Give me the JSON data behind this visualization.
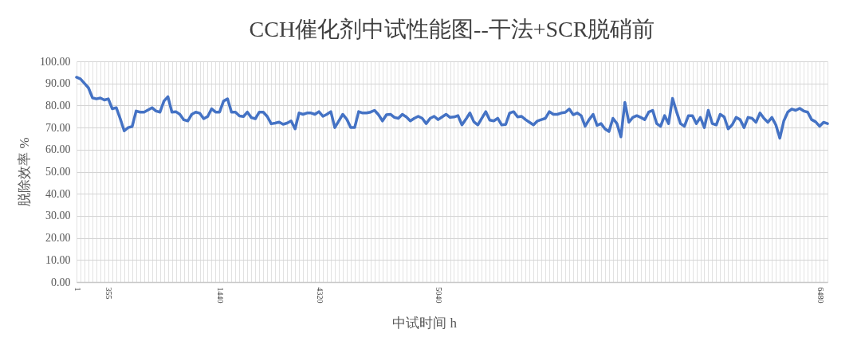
{
  "chart_data": {
    "type": "line",
    "title": "CCH催化剂中试性能图--干法+SCR脱硝前",
    "xlabel": "中试时间 h",
    "ylabel": "脱除效率 %",
    "categories": [
      "1",
      null,
      null,
      null,
      null,
      null,
      null,
      null,
      "355",
      null,
      null,
      null,
      null,
      null,
      null,
      null,
      null,
      null,
      null,
      null,
      null,
      null,
      null,
      null,
      null,
      null,
      null,
      null,
      null,
      null,
      null,
      null,
      null,
      null,
      null,
      null,
      "1440",
      null,
      null,
      null,
      null,
      null,
      null,
      null,
      null,
      null,
      null,
      null,
      null,
      null,
      null,
      null,
      null,
      null,
      null,
      null,
      null,
      null,
      null,
      null,
      null,
      "4320",
      null,
      null,
      null,
      null,
      null,
      null,
      null,
      null,
      null,
      null,
      null,
      null,
      null,
      null,
      null,
      null,
      null,
      null,
      null,
      null,
      null,
      null,
      null,
      null,
      null,
      null,
      null,
      null,
      null,
      "5040",
      null,
      null,
      null,
      null,
      null,
      null,
      null,
      null,
      null,
      null,
      null,
      null,
      null,
      null,
      null,
      null,
      null,
      null,
      null,
      null,
      null,
      null,
      null,
      null,
      null,
      null,
      null,
      null,
      null,
      null,
      null,
      null,
      null,
      null,
      null,
      null,
      null,
      null,
      null,
      null,
      null,
      null,
      null,
      null,
      null,
      null,
      null,
      null,
      null,
      null,
      null,
      null,
      null,
      null,
      null,
      null,
      null,
      null,
      null,
      null,
      null,
      null,
      null,
      null,
      null,
      null,
      null,
      null,
      null,
      null,
      null,
      null,
      null,
      null,
      null,
      null,
      null,
      null,
      null,
      null,
      null,
      null,
      null,
      null,
      null,
      null,
      null,
      null,
      null,
      null,
      null,
      null,
      null,
      null,
      null,
      "6480",
      null,
      null
    ],
    "series": [
      {
        "color": "#4472c4",
        "values": [
          92.8,
          92,
          90,
          88,
          83.5,
          83,
          83.4,
          82.5,
          83,
          78.5,
          79,
          74,
          68.5,
          70,
          70.5,
          77.5,
          77,
          77,
          78,
          79,
          77.5,
          77,
          82,
          84,
          77,
          77.2,
          76,
          73.5,
          73,
          76,
          77,
          76.5,
          74,
          75,
          78.5,
          77,
          77,
          82,
          83,
          77,
          77,
          75.3,
          75,
          77,
          74.5,
          74,
          77,
          77,
          75,
          71.7,
          72,
          72.5,
          71.5,
          72,
          73.0,
          69.4,
          76.6,
          76.0,
          76.6,
          76.6,
          76.0,
          77.2,
          75.1,
          76.0,
          77.2,
          70.0,
          73.0,
          76.0,
          73.8,
          70.0,
          70.0,
          77.2,
          76.6,
          76.6,
          77.0,
          77.8,
          75.8,
          73.0,
          75.8,
          76.0,
          74.6,
          74.2,
          76.0,
          74.8,
          73.0,
          74.2,
          75.1,
          74.2,
          71.8,
          74.2,
          75.1,
          73.6,
          74.8,
          76.0,
          74.6,
          74.8,
          75.4,
          71.2,
          73.8,
          76.6,
          72.6,
          71.2,
          74.2,
          77.2,
          73.4,
          73.0,
          74.2,
          71.2,
          71.4,
          76.6,
          77.2,
          74.8,
          75.1,
          73.6,
          72.4,
          71.2,
          73.0,
          73.6,
          74.2,
          77.2,
          76.0,
          76.0,
          76.6,
          76.9,
          78.4,
          75.8,
          76.6,
          75.4,
          70.6,
          73.6,
          76.0,
          71.0,
          71.8,
          69.4,
          68.2,
          74.2,
          71.8,
          65.8,
          81.4,
          72.4,
          74.6,
          75.4,
          74.6,
          73.6,
          77.0,
          77.8,
          71.8,
          70.6,
          75.4,
          71.8,
          83.2,
          77.2,
          71.8,
          70.6,
          75.4,
          75.4,
          71.8,
          74.6,
          70.0,
          77.8,
          71.8,
          71.2,
          76.0,
          74.8,
          69.4,
          71.2,
          74.6,
          73.6,
          70.0,
          74.6,
          74.2,
          72.4,
          76.6,
          74.2,
          72.4,
          74.6,
          71.2,
          65.2,
          73.0,
          77.0,
          78.4,
          77.8,
          78.7,
          77.5,
          77.0,
          73.6,
          72.6,
          70.6,
          72.4,
          71.8
        ]
      }
    ],
    "ylim": [
      0,
      100
    ],
    "yticks": [
      {
        "value": 0,
        "label": "0.00"
      },
      {
        "value": 10,
        "label": "10.00"
      },
      {
        "value": 20,
        "label": "20.00"
      },
      {
        "value": 30,
        "label": "30.00"
      },
      {
        "value": 40,
        "label": "40.00"
      },
      {
        "value": 50,
        "label": "50.00"
      },
      {
        "value": 60,
        "label": "60.00"
      },
      {
        "value": 70,
        "label": "70.00"
      },
      {
        "value": 80,
        "label": "80.00"
      },
      {
        "value": 90,
        "label": "90.00"
      },
      {
        "value": 100,
        "label": "100.00"
      }
    ],
    "grid": true,
    "line_style": "solid"
  }
}
